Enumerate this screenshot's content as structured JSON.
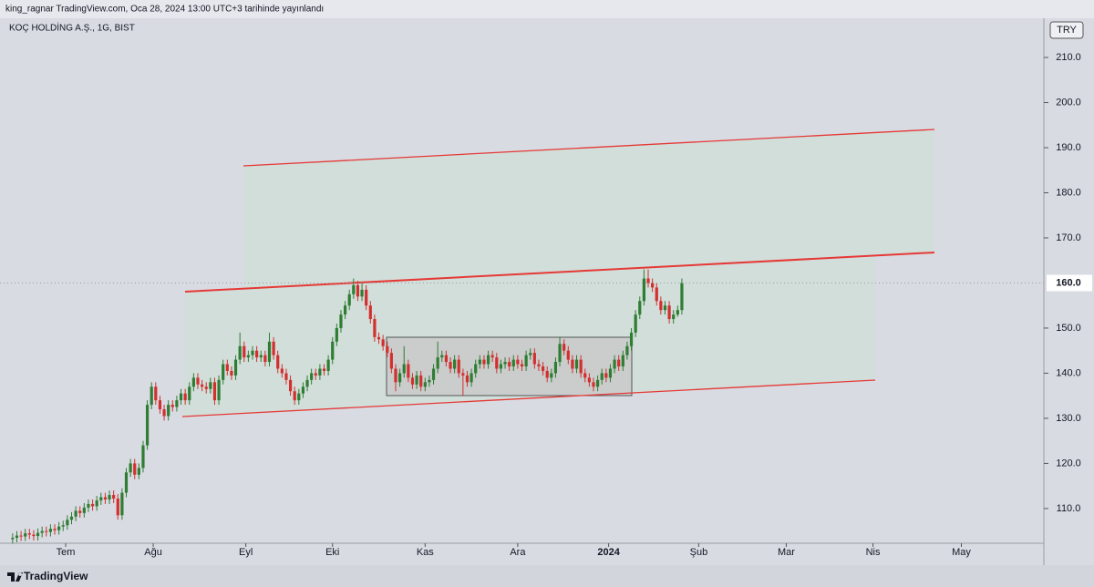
{
  "header": "king_ragnar TradingView.com, Oca 28, 2024 13:00 UTC+3 tarihinde yayınlandı",
  "chart_data": {
    "type": "candlestick",
    "title": "KOÇ HOLDİNG A.Ş., 1G, BIST",
    "currency": "TRY",
    "up_color": "#2e7d32",
    "down_color": "#d32f2f",
    "grid": false,
    "ylim": [
      102.5,
      218.7
    ],
    "yticks": [
      {
        "value": 110,
        "label": "110.0"
      },
      {
        "value": 120,
        "label": "120.0"
      },
      {
        "value": 130,
        "label": "130.0"
      },
      {
        "value": 140,
        "label": "140.0"
      },
      {
        "value": 150,
        "label": "150.0"
      },
      {
        "value": 170,
        "label": "170.0"
      },
      {
        "value": 180,
        "label": "180.0"
      },
      {
        "value": 190,
        "label": "190.0"
      },
      {
        "value": 200,
        "label": "200.0"
      },
      {
        "value": 210,
        "label": "210.0"
      }
    ],
    "last_price": {
      "value": 160,
      "label": "160.0"
    },
    "xlim": [
      -3,
      245
    ],
    "xticks": [
      {
        "value": 12.6,
        "label": "Tem"
      },
      {
        "value": 33.4,
        "label": "Ağu"
      },
      {
        "value": 55.4,
        "label": "Eyl"
      },
      {
        "value": 76,
        "label": "Eki"
      },
      {
        "value": 98,
        "label": "Kas"
      },
      {
        "value": 120,
        "label": "Ara"
      },
      {
        "value": 141.6,
        "label": "2024"
      },
      {
        "value": 163,
        "label": "Şub"
      },
      {
        "value": 183.8,
        "label": "Mar"
      },
      {
        "value": 204.4,
        "label": "Nis"
      },
      {
        "value": 225.4,
        "label": "May"
      }
    ],
    "ohlc": [
      [
        103.2,
        104.5,
        102.2,
        103.5
      ],
      [
        103.5,
        105,
        102.5,
        104
      ],
      [
        104,
        105,
        102.8,
        103.8
      ],
      [
        103.8,
        105.5,
        102.8,
        104.5
      ],
      [
        104.5,
        105.5,
        103.2,
        104.2
      ],
      [
        104.2,
        105.2,
        102.9,
        103.9
      ],
      [
        103.9,
        105.6,
        102.9,
        104.6
      ],
      [
        104.6,
        106,
        103.6,
        105
      ],
      [
        105,
        106,
        103.8,
        104.8
      ],
      [
        104.8,
        106.5,
        103.8,
        105.5
      ],
      [
        105.5,
        106.5,
        104.2,
        105.2
      ],
      [
        105.2,
        107,
        104.2,
        106
      ],
      [
        106,
        107.3,
        105,
        106.3
      ],
      [
        106.3,
        108.5,
        105.3,
        107.5
      ],
      [
        107.5,
        109.2,
        106.5,
        108.2
      ],
      [
        108.2,
        110.5,
        107.2,
        109.5
      ],
      [
        109.5,
        110.5,
        108,
        109
      ],
      [
        109,
        111.2,
        108,
        110.2
      ],
      [
        110.2,
        112,
        109.2,
        111
      ],
      [
        111,
        112,
        109.5,
        110.5
      ],
      [
        110.5,
        112.8,
        109.5,
        111.8
      ],
      [
        111.8,
        113.5,
        110.8,
        112.5
      ],
      [
        112.5,
        113.5,
        111,
        112
      ],
      [
        112,
        114,
        111,
        113
      ],
      [
        113,
        114,
        111.2,
        112.2
      ],
      [
        112.2,
        113.2,
        107.5,
        108.5
      ],
      [
        108.5,
        114.5,
        107.5,
        113.5
      ],
      [
        113.5,
        119,
        112.5,
        118
      ],
      [
        118,
        121,
        117,
        120
      ],
      [
        120,
        121,
        116.5,
        117.5
      ],
      [
        117.5,
        120,
        116.5,
        119
      ],
      [
        119,
        125,
        118,
        124
      ],
      [
        124,
        134,
        123,
        133
      ],
      [
        133,
        138,
        132,
        137
      ],
      [
        137,
        138,
        133,
        134
      ],
      [
        134,
        135,
        131,
        132
      ],
      [
        132,
        133,
        129.5,
        130.5
      ],
      [
        130.5,
        134,
        129.5,
        133
      ],
      [
        133,
        134,
        131.5,
        132.5
      ],
      [
        132.5,
        135,
        131.5,
        134
      ],
      [
        134,
        136.5,
        133,
        135.5
      ],
      [
        135.5,
        136.5,
        133,
        134
      ],
      [
        134,
        138,
        133,
        137
      ],
      [
        137,
        140,
        136,
        139
      ],
      [
        139,
        140,
        136.5,
        137.5
      ],
      [
        137.5,
        138.5,
        136,
        137
      ],
      [
        137,
        138,
        135.5,
        136.5
      ],
      [
        136.5,
        139,
        135.5,
        138
      ],
      [
        138,
        139,
        133,
        134
      ],
      [
        134,
        139.5,
        133,
        138.5
      ],
      [
        138.5,
        143,
        137.5,
        142
      ],
      [
        142,
        143,
        139.5,
        140.5
      ],
      [
        140.5,
        141.5,
        138.5,
        139.5
      ],
      [
        139.5,
        144,
        138.5,
        143
      ],
      [
        143,
        149,
        142,
        146
      ],
      [
        146,
        147,
        142.5,
        143.5
      ],
      [
        143.5,
        145,
        142.5,
        144
      ],
      [
        144,
        146,
        143,
        145
      ],
      [
        145,
        146,
        142.5,
        143.5
      ],
      [
        143.5,
        145,
        142.5,
        144
      ],
      [
        144,
        145,
        141.5,
        142.5
      ],
      [
        142.5,
        149,
        141.5,
        147
      ],
      [
        147,
        148,
        143,
        144
      ],
      [
        144,
        145,
        140,
        141
      ],
      [
        141,
        142,
        139,
        140
      ],
      [
        140,
        141,
        137.5,
        138.5
      ],
      [
        138.5,
        139.5,
        135,
        136
      ],
      [
        136,
        137,
        133,
        134
      ],
      [
        134,
        136.5,
        133,
        135.5
      ],
      [
        135.5,
        138,
        134.5,
        137
      ],
      [
        137,
        139.5,
        136,
        138.5
      ],
      [
        138.5,
        141,
        137.5,
        140
      ],
      [
        140,
        141,
        138.5,
        139.5
      ],
      [
        139.5,
        142,
        138.5,
        141
      ],
      [
        141,
        142,
        139.5,
        140.5
      ],
      [
        140.5,
        144,
        139.5,
        143
      ],
      [
        143,
        148,
        142,
        147
      ],
      [
        147,
        151,
        146,
        150
      ],
      [
        150,
        154,
        149,
        153
      ],
      [
        153,
        156,
        152,
        155
      ],
      [
        155,
        158.5,
        154,
        157.5
      ],
      [
        157.5,
        161,
        156.5,
        159.5
      ],
      [
        159.5,
        160.5,
        156,
        157
      ],
      [
        157,
        160,
        156,
        158.5
      ],
      [
        158.5,
        159.5,
        154,
        155
      ],
      [
        155,
        156,
        151,
        152
      ],
      [
        152,
        153,
        147,
        148
      ],
      [
        148,
        149,
        146.5,
        147.5
      ],
      [
        147.5,
        148.5,
        145,
        146
      ],
      [
        146,
        147,
        143.5,
        144.5
      ],
      [
        144.5,
        145.5,
        140,
        141
      ],
      [
        141,
        142,
        136,
        138
      ],
      [
        138,
        141,
        137,
        140
      ],
      [
        140,
        146,
        139,
        142
      ],
      [
        142,
        143,
        138,
        139
      ],
      [
        139,
        140,
        136.5,
        137.5
      ],
      [
        137.5,
        140.5,
        136.5,
        139.5
      ],
      [
        139.5,
        140.5,
        136,
        137
      ],
      [
        137,
        139,
        136,
        138
      ],
      [
        138,
        139.5,
        137,
        138.5
      ],
      [
        138.5,
        142,
        137.5,
        141
      ],
      [
        141,
        147,
        140,
        143.5
      ],
      [
        143.5,
        145,
        142.5,
        144
      ],
      [
        144,
        145,
        141.5,
        142.5
      ],
      [
        142.5,
        143.5,
        140,
        141
      ],
      [
        141,
        144,
        140,
        143
      ],
      [
        143,
        144,
        139,
        140
      ],
      [
        140,
        141,
        135,
        139.5
      ],
      [
        139.5,
        140.5,
        137,
        138
      ],
      [
        138,
        141,
        137,
        140
      ],
      [
        140,
        143,
        139,
        142
      ],
      [
        142,
        144,
        141,
        143
      ],
      [
        143,
        144,
        141,
        142
      ],
      [
        142,
        145,
        141,
        144
      ],
      [
        144,
        145,
        142.5,
        143.5
      ],
      [
        143.5,
        144.5,
        140,
        141
      ],
      [
        141,
        143,
        140,
        142
      ],
      [
        142,
        143.5,
        141,
        142.5
      ],
      [
        142.5,
        143.5,
        140.5,
        141.5
      ],
      [
        141.5,
        144,
        140.5,
        143
      ],
      [
        143,
        144,
        141,
        142
      ],
      [
        142,
        143,
        140.5,
        141.5
      ],
      [
        141.5,
        145,
        140.5,
        144
      ],
      [
        144,
        145.5,
        143,
        144.5
      ],
      [
        144.5,
        145.5,
        141,
        142
      ],
      [
        142,
        143,
        140.5,
        141.5
      ],
      [
        141.5,
        142.5,
        139.5,
        140.5
      ],
      [
        140.5,
        141.5,
        138,
        139
      ],
      [
        139,
        141,
        138,
        140
      ],
      [
        140,
        143.5,
        139,
        142.5
      ],
      [
        142.5,
        148,
        141.5,
        146.5
      ],
      [
        146.5,
        147.5,
        144,
        145
      ],
      [
        145,
        146,
        142,
        143
      ],
      [
        143,
        144,
        140,
        141
      ],
      [
        141,
        144,
        140,
        143
      ],
      [
        143,
        144,
        139,
        140
      ],
      [
        140,
        141,
        138,
        139
      ],
      [
        139,
        140,
        137,
        138
      ],
      [
        138,
        139,
        136,
        137
      ],
      [
        137,
        139.5,
        136,
        138.5
      ],
      [
        138.5,
        141,
        137.5,
        140
      ],
      [
        140,
        141,
        138,
        139
      ],
      [
        139,
        142,
        138,
        141
      ],
      [
        141,
        144,
        140,
        143
      ],
      [
        143,
        144,
        140.5,
        141.5
      ],
      [
        141.5,
        145,
        140.5,
        144
      ],
      [
        144,
        147,
        143,
        146
      ],
      [
        146,
        150,
        145,
        149
      ],
      [
        149,
        154,
        148,
        153
      ],
      [
        153,
        157,
        152,
        156
      ],
      [
        156,
        163,
        155,
        161
      ],
      [
        161,
        163,
        159,
        160
      ],
      [
        160,
        161,
        158,
        159
      ],
      [
        159,
        160,
        155,
        156
      ],
      [
        156,
        157,
        153,
        154
      ],
      [
        154,
        156,
        153,
        155
      ],
      [
        155,
        156,
        151,
        152
      ],
      [
        152,
        154,
        151,
        153
      ],
      [
        153,
        155,
        152.5,
        154
      ],
      [
        154,
        161,
        153,
        160
      ]
    ]
  },
  "footer": "TradingView"
}
